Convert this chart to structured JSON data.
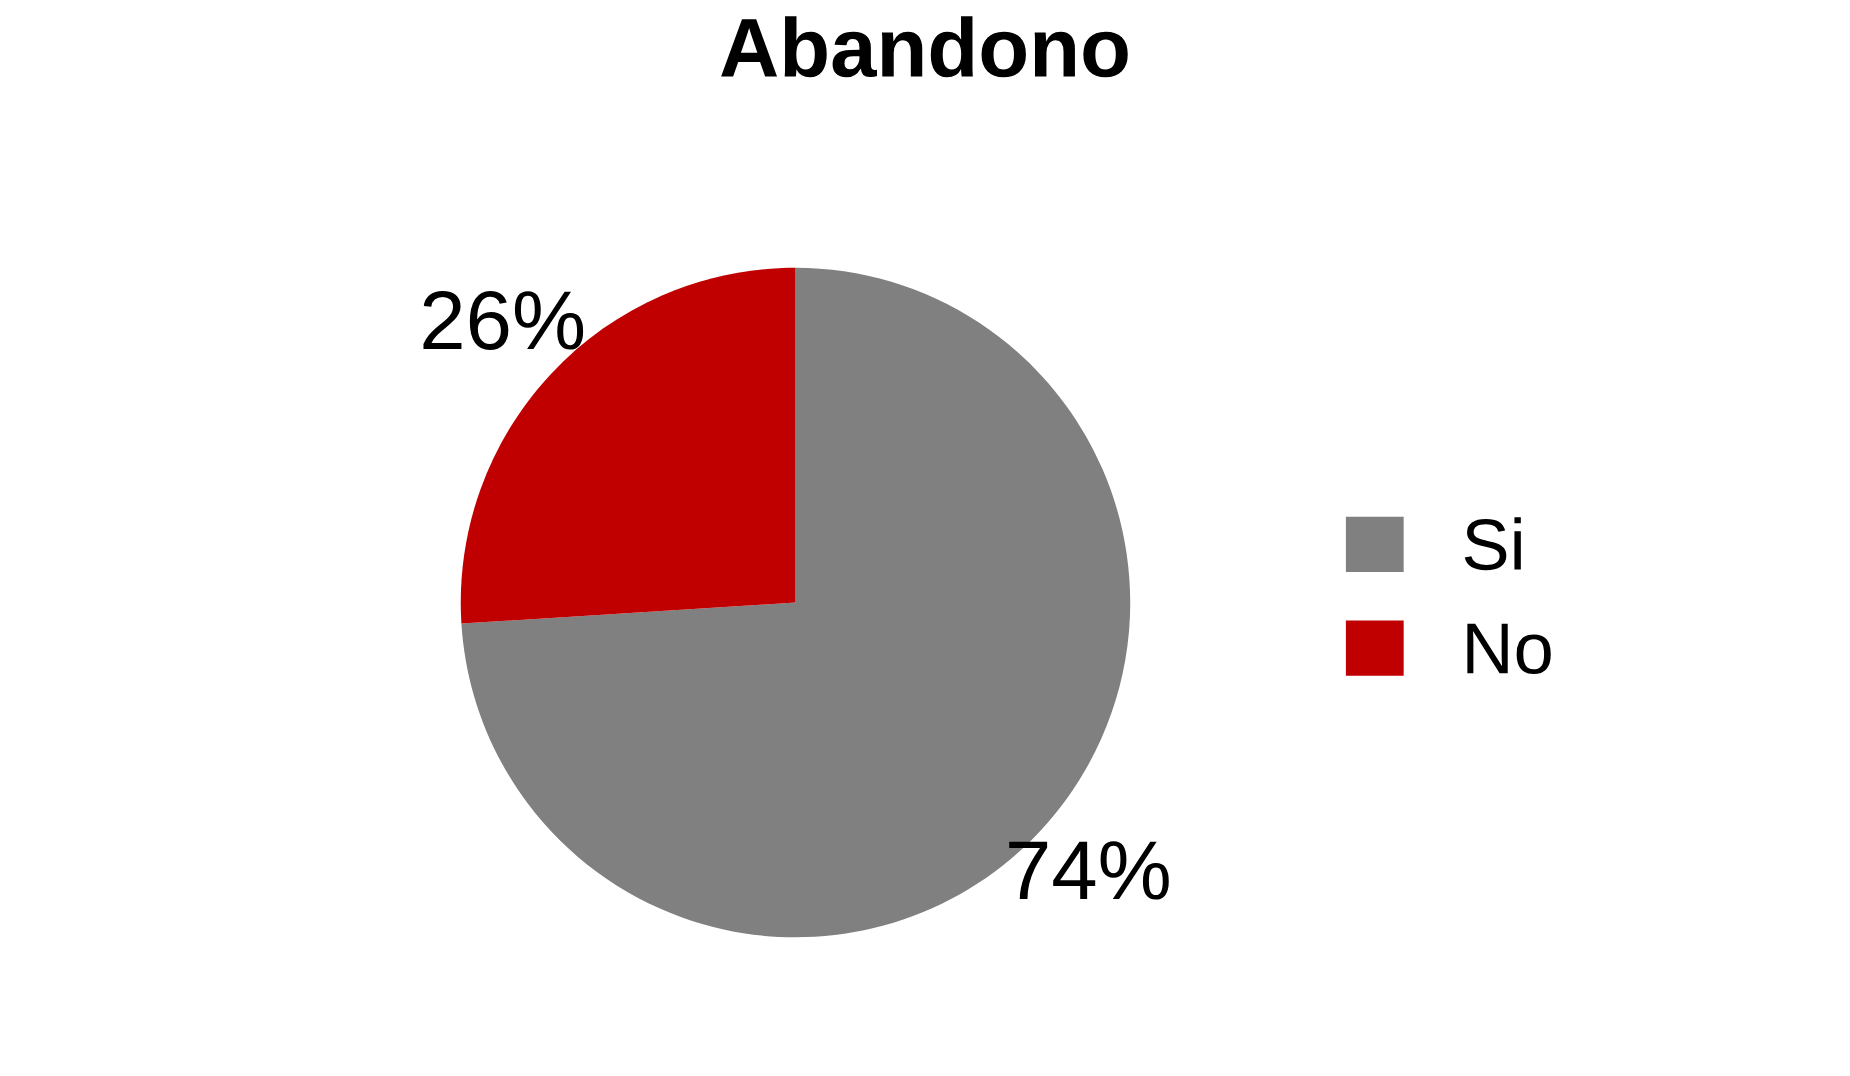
{
  "chart_data": {
    "type": "pie",
    "title": "Abandono",
    "categories": [
      "Si",
      "No"
    ],
    "values": [
      74,
      26
    ],
    "colors": [
      "#808080",
      "#c00000"
    ],
    "value_labels": [
      "74%",
      "26%"
    ],
    "legend": "right"
  }
}
